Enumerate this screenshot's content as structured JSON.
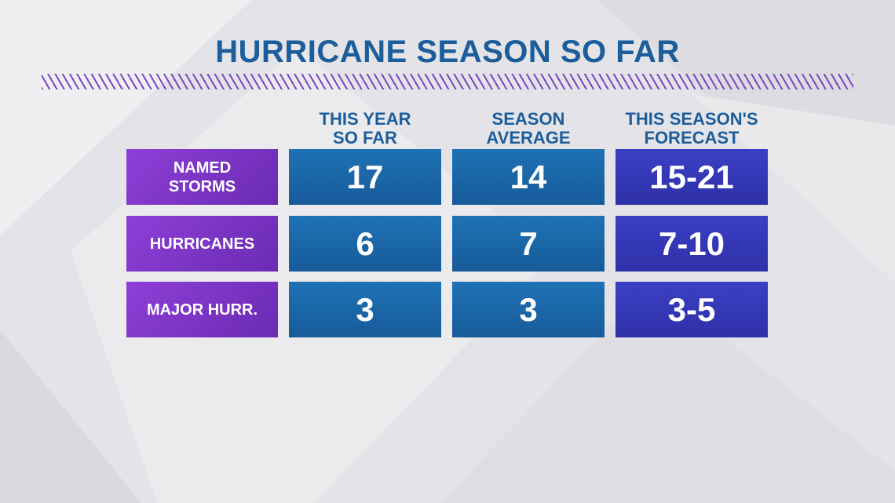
{
  "title": "HURRICANE SEASON SO FAR",
  "colors": {
    "title": "#1c5d9b",
    "stripe": "#7b45c4",
    "row_label_bg": "#7e36c9",
    "value_bg_blue": "#1b67a8",
    "value_bg_indigo": "#3538b8"
  },
  "columns": [
    {
      "lines": [
        "THIS YEAR",
        "SO FAR"
      ]
    },
    {
      "lines": [
        "SEASON",
        "AVERAGE"
      ]
    },
    {
      "lines": [
        "THIS SEASON'S",
        "FORECAST"
      ]
    }
  ],
  "rows": [
    {
      "lines": [
        "NAMED",
        "STORMS"
      ],
      "values": [
        "17",
        "14",
        "15-21"
      ]
    },
    {
      "lines": [
        "HURRICANES"
      ],
      "values": [
        "6",
        "7",
        "7-10"
      ]
    },
    {
      "lines": [
        "MAJOR HURR."
      ],
      "values": [
        "3",
        "3",
        "3-5"
      ]
    }
  ],
  "chart_data": {
    "type": "table",
    "title": "HURRICANE SEASON SO FAR",
    "columns": [
      "THIS YEAR SO FAR",
      "SEASON AVERAGE",
      "THIS SEASON'S FORECAST"
    ],
    "rows": [
      {
        "label": "NAMED STORMS",
        "this_year_so_far": 17,
        "season_average": 14,
        "forecast": "15-21"
      },
      {
        "label": "HURRICANES",
        "this_year_so_far": 6,
        "season_average": 7,
        "forecast": "7-10"
      },
      {
        "label": "MAJOR HURR.",
        "this_year_so_far": 3,
        "season_average": 3,
        "forecast": "3-5"
      }
    ]
  }
}
